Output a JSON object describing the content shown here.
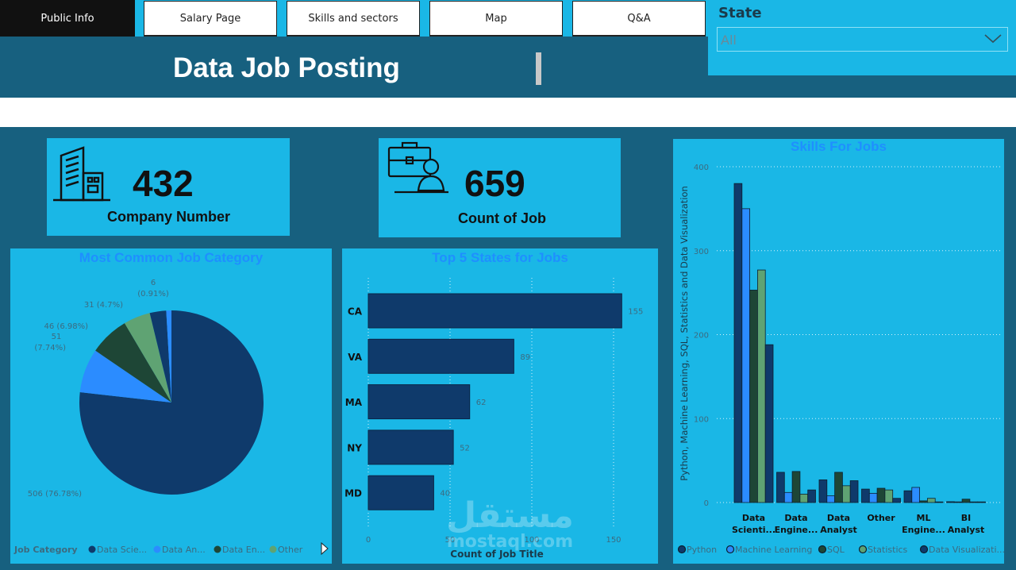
{
  "nav": {
    "tabs": [
      {
        "label": "Public Info",
        "active": true
      },
      {
        "label": "Salary Page"
      },
      {
        "label": "Skills and sectors"
      },
      {
        "label": "Map"
      },
      {
        "label": "Q&A"
      }
    ]
  },
  "header": {
    "title": "Data Job Posting"
  },
  "slicer": {
    "label": "State",
    "value": "All",
    "icon": "chevron-down-icon"
  },
  "kpis": [
    {
      "value": "432",
      "label": "Company Number",
      "icon": "office-building-icon"
    },
    {
      "value": "659",
      "label": "Count of Job",
      "icon": "briefcase-person-icon"
    }
  ],
  "watermark": {
    "arabic": "مستقل",
    "latin": "mostaql.com"
  },
  "colors": {
    "background": "#17607f",
    "panel": "#1ab7e6",
    "title": "#1f8fff",
    "dark_navy": "#0f3a6b",
    "blue": "#2b8cff",
    "dark_green": "#1e4636",
    "green": "#5fa373"
  },
  "chart_data": [
    {
      "type": "pie",
      "title": "Most Common Job Category",
      "legend_title": "Job Category",
      "legend_position": "bottom",
      "legend": [
        "Data Scie...",
        "Data An...",
        "Data En...",
        "Other"
      ],
      "slices": [
        {
          "value": 506,
          "label": "506 (76.78%)",
          "color": "#0f3a6b"
        },
        {
          "value": 51,
          "label": "51 (7.74%)",
          "color": "#2b8cff"
        },
        {
          "value": 46,
          "label": "46 (6.98%)",
          "color": "#1e4636"
        },
        {
          "value": 31,
          "label": "31 (4.7%)",
          "color": "#5fa373"
        },
        {
          "value": 19,
          "label": "",
          "color": "#0f3a6b"
        },
        {
          "value": 6,
          "label": "6 (0.91%)",
          "color": "#2b8cff"
        }
      ]
    },
    {
      "type": "bar",
      "orientation": "horizontal",
      "title": "Top 5 States for Jobs",
      "xlabel": "Count of Job Title",
      "categories": [
        "CA",
        "VA",
        "MA",
        "NY",
        "MD"
      ],
      "values": [
        155,
        89,
        62,
        52,
        40
      ],
      "xlim": [
        0,
        160
      ],
      "xticks": [
        0,
        50,
        100,
        150
      ],
      "grid": true
    },
    {
      "type": "bar",
      "title": "Skills For Jobs",
      "ylabel": "Python, Machine Learning, SQL, Statistics and Data Visualization",
      "categories": [
        "Data Scienti...",
        "Data Engine...",
        "Data Analyst",
        "Other",
        "ML Engine...",
        "BI Analyst"
      ],
      "ylim": [
        0,
        400
      ],
      "yticks": [
        0,
        100,
        200,
        300,
        400
      ],
      "grid": true,
      "legend_position": "bottom",
      "series": [
        {
          "name": "Python",
          "color": "#0f3a6b",
          "values": [
            380,
            36,
            27,
            16,
            14,
            1
          ]
        },
        {
          "name": "Machine Learning",
          "color": "#2b8cff",
          "values": [
            350,
            12,
            8,
            11,
            18,
            0
          ]
        },
        {
          "name": "SQL",
          "color": "#1e4636",
          "values": [
            253,
            37,
            36,
            17,
            2,
            4
          ]
        },
        {
          "name": "Statistics",
          "color": "#5fa373",
          "values": [
            277,
            10,
            20,
            15,
            5,
            0
          ]
        },
        {
          "name": "Data Visualizati...",
          "color": "#0f3a6b",
          "values": [
            188,
            15,
            26,
            5,
            0,
            0
          ]
        }
      ]
    }
  ]
}
